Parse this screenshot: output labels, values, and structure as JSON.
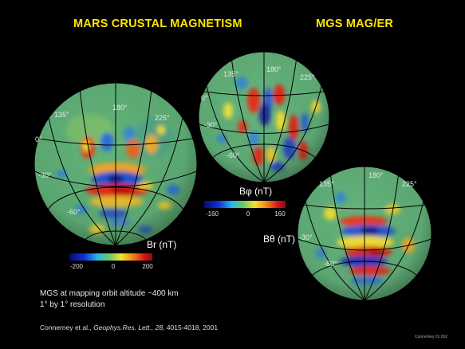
{
  "titles": {
    "left": "MARS CRUSTAL MAGNETISM",
    "right": "MGS MAG/ER"
  },
  "panels": {
    "br": {
      "longitudes": [
        "135°",
        "180°",
        "225°"
      ],
      "latitudes": [
        "0°",
        "-30°",
        "-60°"
      ],
      "component": "Br (nT)",
      "colorbar": [
        "-200",
        "0",
        "200"
      ]
    },
    "bphi": {
      "longitudes": [
        "135°",
        "180°",
        "225°"
      ],
      "latitudes": [
        "0°",
        "-30°",
        "-60°"
      ],
      "component": "Bφ (nT)",
      "colorbar": [
        "-160",
        "0",
        "160"
      ]
    },
    "btheta": {
      "longitudes": [
        "135°",
        "180°",
        "225°"
      ],
      "latitudes": [
        "-30°",
        "-60°"
      ],
      "component": "Bθ (nT)"
    }
  },
  "notes": {
    "line1": "MGS at mapping orbit altitude ~400 km",
    "line2": "1° by 1° resolution"
  },
  "citation": {
    "authors": "Connerney et al.,",
    "journal": "Geophys.Res. Lett.,",
    "volume": "28,",
    "pages": "4015-4018, 2001"
  },
  "stamp": "Connerney 01 002"
}
